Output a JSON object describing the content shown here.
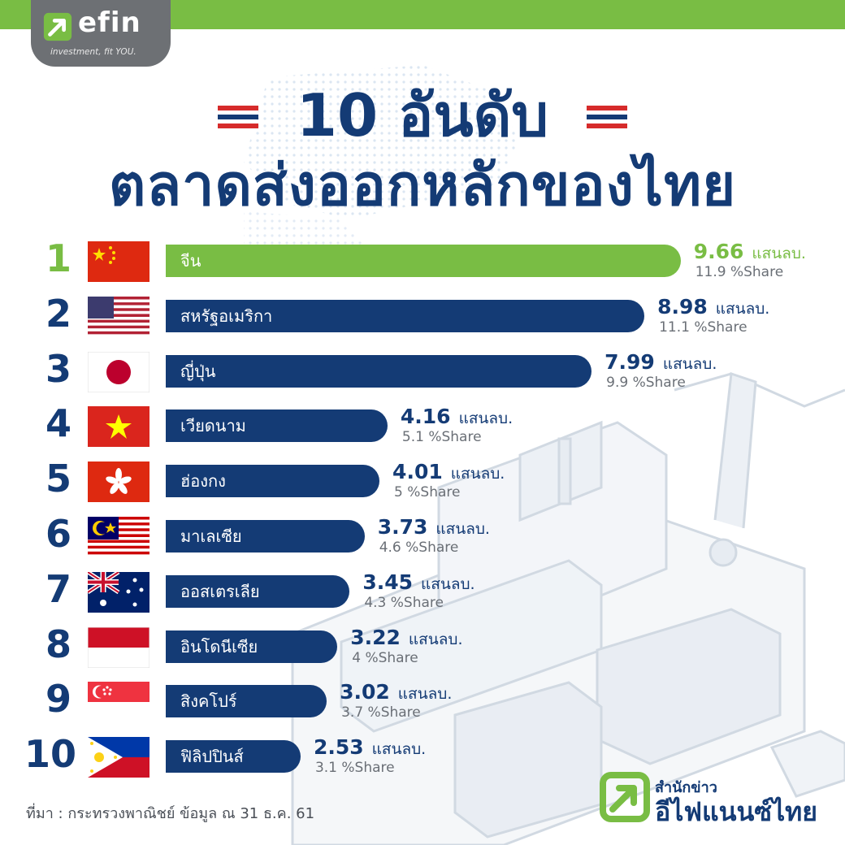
{
  "brand": {
    "logo_word": "efin",
    "logo_tagline": "investment, fit YOU.",
    "footer_small": "สำนักข่าว",
    "footer_big": "อีไฟแนนซ์ไทย"
  },
  "title_line1": "10 อันดับ",
  "title_line2": "ตลาดส่งออกหลักของไทย",
  "source_note": "ที่มา : กระทรวงพาณิชย์ ข้อมูล ณ 31 ธ.ค. 61",
  "colors": {
    "primary": "#143b75",
    "accent": "#79bd44",
    "share_text": "#6a6f76"
  },
  "chart_data": {
    "type": "bar",
    "orientation": "horizontal",
    "title": "10 อันดับ ตลาดส่งออกหลักของไทย",
    "value_unit": "แสนลบ.",
    "categories": [
      "จีน",
      "สหรัฐอเมริกา",
      "ญี่ปุ่น",
      "เวียดนาม",
      "ฮ่องกง",
      "มาเลเซีย",
      "ออสเตรเลีย",
      "อินโดนีเซีย",
      "สิงคโปร์",
      "ฟิลิปปินส์"
    ],
    "ranks": [
      "1",
      "2",
      "3",
      "4",
      "5",
      "6",
      "7",
      "8",
      "9",
      "10"
    ],
    "values": [
      9.66,
      8.98,
      7.99,
      4.16,
      4.01,
      3.73,
      3.45,
      3.22,
      3.02,
      2.53
    ],
    "value_labels": [
      "9.66",
      "8.98",
      "7.99",
      "4.16",
      "4.01",
      "3.73",
      "3.45",
      "3.22",
      "3.02",
      "2.53"
    ],
    "share_labels": [
      "11.9 %Share",
      "11.1 %Share",
      "9.9 %Share",
      "5.1 %Share",
      "5 %Share",
      "4.6 %Share",
      "4.3  %Share",
      "4 %Share",
      "3.7 %Share",
      "3.1 %Share"
    ],
    "flags": [
      "china-flag-icon",
      "usa-flag-icon",
      "japan-flag-icon",
      "vietnam-flag-icon",
      "hongkong-flag-icon",
      "malaysia-flag-icon",
      "australia-flag-icon",
      "indonesia-flag-icon",
      "singapore-flag-icon",
      "philippines-flag-icon"
    ],
    "highlight_index": 0,
    "legend": "none",
    "grid": false
  }
}
